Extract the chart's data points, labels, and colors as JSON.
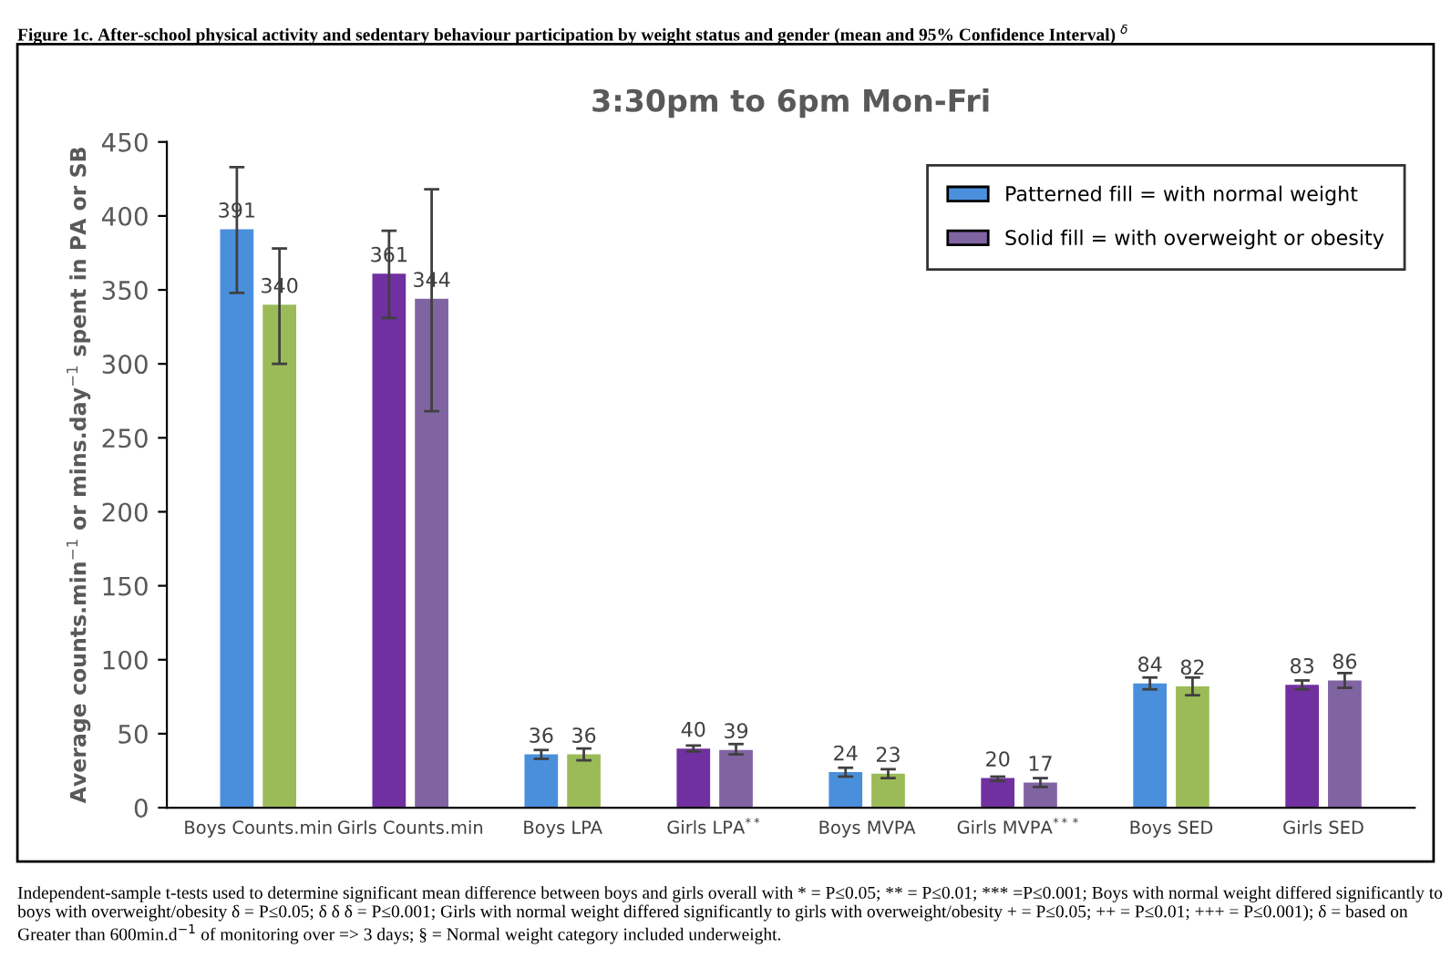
{
  "chart_data": {
    "type": "bar",
    "title": "3:30pm to 6pm Mon-Fri",
    "subtitle": "Figure 1c. After-school physical activity and sedentary behaviour participation by weight status and gender (mean and 95% Confidence Interval) $^{δ}$",
    "ylabel": "Average counts.min$^{−1}$ or mins.day$^{−1}$ spent in PA or SB",
    "categories": [
      "Boys Counts.min",
      "Girls Counts.min",
      "Boys LPA",
      "Girls LPA$^{**}$",
      "Boys MVPA",
      "Girls MVPA$^{***}$",
      "Boys SED",
      "Girls SED"
    ],
    "series": [
      {
        "name": "Patterned fill = with normal weight",
        "color": "#4a8fdc",
        "colors": [
          "#4a8fdc",
          "#7030a0",
          "#4a8fdc",
          "#7030a0",
          "#4a8fdc",
          "#7030a0",
          "#4a8fdc",
          "#7030a0"
        ],
        "values": [
          391,
          361,
          36,
          40,
          24,
          20,
          84,
          83
        ],
        "errors": [
          [
            348,
            433
          ],
          [
            331,
            390
          ],
          [
            33,
            39
          ],
          [
            38,
            42
          ],
          [
            21,
            27
          ],
          [
            18,
            21
          ],
          [
            80,
            88
          ],
          [
            80,
            86
          ]
        ]
      },
      {
        "name": "Solid fill = with overweight or obesity",
        "color": "#8064a2",
        "colors": [
          "#9bbb59",
          "#8064a2",
          "#9bbb59",
          "#8064a2",
          "#9bbb59",
          "#8064a2",
          "#9bbb59",
          "#8064a2"
        ],
        "values": [
          340,
          344,
          36,
          39,
          23,
          17,
          82,
          86
        ],
        "errors": [
          [
            300,
            378
          ],
          [
            268,
            418
          ],
          [
            32,
            40
          ],
          [
            36,
            43
          ],
          [
            20,
            26
          ],
          [
            14,
            20
          ],
          [
            76,
            88
          ],
          [
            81,
            91
          ]
        ]
      }
    ],
    "data_labels": true,
    "ylim": [
      0,
      450
    ],
    "yticks": [
      0,
      50,
      100,
      150,
      200,
      250,
      300,
      350,
      400,
      450
    ],
    "legend": "top right",
    "annotations": [
      "Independent-sample t-tests used to determine significant mean difference between boys and girls overall with * = P≤0.05; ** = P≤0.01; *** =P≤0.001; Boys with normal weight differed significantly to boys with overweight/obesity δ = P≤0.05; δ δ δ = P≤0.001; Girls with normal weight differed significantly to girls with overweight/obesity + = P≤0.05; ++ = P≤0.01; +++ = P≤0.001); δ = based on Greater than 600min.d$^{−1}$ of monitoring over => 3 days; § = Normal weight category included underweight."
    ]
  }
}
